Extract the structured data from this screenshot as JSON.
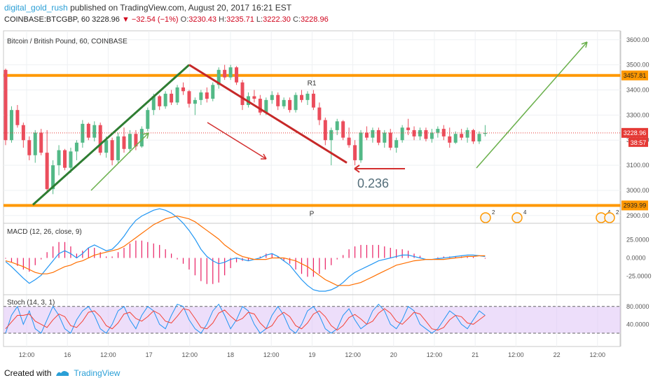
{
  "header": {
    "user": "digital_gold_rush",
    "published": "published on TradingView.com, August 20, 2017 16:21 EST",
    "symbol": "COINBASE:BTCGBP, 60",
    "last": "3228.96",
    "change": "−32.54 (−1%)",
    "o_label": "O:",
    "o": "3230.43",
    "h_label": "H:",
    "h": "3235.71",
    "l_label": "L:",
    "l": "3222.30",
    "c_label": "C:",
    "c": "3228.96"
  },
  "footer": {
    "created_with": "Created with",
    "brand": "TradingView"
  },
  "colors": {
    "up": "#53b987",
    "down": "#eb4d5c",
    "orange": "#ff9800",
    "green_line": "#2e7d32",
    "red_line": "#c62828",
    "stoch_band": "#e1c8f7",
    "macd_line": "#2196f3",
    "signal_line": "#ff6f00"
  },
  "chart_data": {
    "type": "candlestick",
    "title": "Bitcoin / British Pound, 60, COINBASE",
    "price_axis": {
      "ticks": [
        2900,
        3000,
        3100,
        3200,
        3300,
        3400,
        3500,
        3600
      ],
      "labels": [
        "2900.00",
        "3000.00",
        "3100.00",
        "3200.00",
        "3300.00",
        "3400.00",
        "3500.00",
        "3600.00"
      ],
      "range": [
        2880,
        3630
      ]
    },
    "time_axis": {
      "labels": [
        "12:00",
        "16",
        "12:00",
        "17",
        "12:00",
        "18",
        "12:00",
        "19",
        "12:00",
        "20",
        "12:00",
        "21",
        "12:00",
        "22",
        "12:00"
      ]
    },
    "current_price_tag": "3228.96",
    "countdown_tag": "38:57",
    "levels": [
      {
        "name": "R1",
        "value": 3457.81,
        "tag": "3457.81"
      },
      {
        "name": "P",
        "value": 2939.99,
        "tag": "2939.99"
      }
    ],
    "fib_label": "0.236",
    "event_badges": [
      "2",
      "4",
      "4",
      "2"
    ],
    "candles": [
      [
        3480,
        3485,
        3180,
        3200
      ],
      [
        3200,
        3335,
        3190,
        3320
      ],
      [
        3320,
        3340,
        3250,
        3260
      ],
      [
        3260,
        3270,
        3170,
        3200
      ],
      [
        3200,
        3215,
        3120,
        3140
      ],
      [
        3140,
        3240,
        3110,
        3230
      ],
      [
        3230,
        3245,
        3140,
        3150
      ],
      [
        3150,
        3240,
        2990,
        3005
      ],
      [
        3005,
        3120,
        2985,
        3100
      ],
      [
        3100,
        3180,
        3060,
        3160
      ],
      [
        3160,
        3165,
        3080,
        3090
      ],
      [
        3090,
        3170,
        3070,
        3155
      ],
      [
        3155,
        3200,
        3120,
        3190
      ],
      [
        3190,
        3280,
        3170,
        3265
      ],
      [
        3265,
        3270,
        3200,
        3210
      ],
      [
        3210,
        3275,
        3195,
        3260
      ],
      [
        3260,
        3270,
        3140,
        3150
      ],
      [
        3150,
        3215,
        3130,
        3200
      ],
      [
        3200,
        3210,
        3100,
        3120
      ],
      [
        3120,
        3230,
        3110,
        3215
      ],
      [
        3215,
        3250,
        3150,
        3165
      ],
      [
        3165,
        3240,
        3150,
        3225
      ],
      [
        3225,
        3240,
        3160,
        3175
      ],
      [
        3175,
        3255,
        3170,
        3245
      ],
      [
        3245,
        3330,
        3235,
        3320
      ],
      [
        3320,
        3385,
        3300,
        3375
      ],
      [
        3375,
        3380,
        3320,
        3335
      ],
      [
        3335,
        3395,
        3325,
        3385
      ],
      [
        3385,
        3400,
        3340,
        3350
      ],
      [
        3350,
        3420,
        3340,
        3410
      ],
      [
        3410,
        3430,
        3380,
        3395
      ],
      [
        3395,
        3400,
        3330,
        3345
      ],
      [
        3345,
        3370,
        3300,
        3360
      ],
      [
        3360,
        3400,
        3340,
        3390
      ],
      [
        3390,
        3410,
        3350,
        3365
      ],
      [
        3365,
        3430,
        3355,
        3420
      ],
      [
        3420,
        3490,
        3405,
        3480
      ],
      [
        3480,
        3500,
        3440,
        3450
      ],
      [
        3450,
        3500,
        3440,
        3490
      ],
      [
        3490,
        3495,
        3420,
        3430
      ],
      [
        3430,
        3440,
        3320,
        3340
      ],
      [
        3340,
        3390,
        3330,
        3375
      ],
      [
        3375,
        3400,
        3350,
        3365
      ],
      [
        3365,
        3380,
        3300,
        3310
      ],
      [
        3310,
        3370,
        3300,
        3360
      ],
      [
        3360,
        3395,
        3345,
        3380
      ],
      [
        3380,
        3390,
        3320,
        3335
      ],
      [
        3335,
        3370,
        3325,
        3360
      ],
      [
        3360,
        3370,
        3310,
        3320
      ],
      [
        3320,
        3390,
        3310,
        3380
      ],
      [
        3380,
        3400,
        3350,
        3360
      ],
      [
        3360,
        3395,
        3340,
        3385
      ],
      [
        3385,
        3400,
        3320,
        3330
      ],
      [
        3330,
        3350,
        3260,
        3280
      ],
      [
        3280,
        3290,
        3180,
        3200
      ],
      [
        3200,
        3250,
        3100,
        3240
      ],
      [
        3240,
        3285,
        3220,
        3275
      ],
      [
        3275,
        3280,
        3200,
        3210
      ],
      [
        3210,
        3250,
        3170,
        3180
      ],
      [
        3180,
        3200,
        3100,
        3120
      ],
      [
        3120,
        3240,
        3110,
        3230
      ],
      [
        3230,
        3255,
        3200,
        3210
      ],
      [
        3210,
        3250,
        3190,
        3240
      ],
      [
        3240,
        3250,
        3180,
        3190
      ],
      [
        3190,
        3240,
        3170,
        3230
      ],
      [
        3230,
        3245,
        3160,
        3170
      ],
      [
        3170,
        3210,
        3150,
        3200
      ],
      [
        3200,
        3260,
        3190,
        3250
      ],
      [
        3250,
        3285,
        3220,
        3240
      ],
      [
        3240,
        3255,
        3200,
        3215
      ],
      [
        3215,
        3250,
        3200,
        3240
      ],
      [
        3240,
        3250,
        3195,
        3205
      ],
      [
        3205,
        3245,
        3190,
        3230
      ],
      [
        3230,
        3255,
        3210,
        3245
      ],
      [
        3245,
        3260,
        3200,
        3215
      ],
      [
        3215,
        3250,
        3170,
        3190
      ],
      [
        3190,
        3235,
        3185,
        3225
      ],
      [
        3225,
        3245,
        3200,
        3210
      ],
      [
        3210,
        3250,
        3190,
        3240
      ],
      [
        3240,
        3245,
        3185,
        3195
      ],
      [
        3195,
        3235,
        3185,
        3225
      ],
      [
        3225,
        3260,
        3215,
        3228.96
      ]
    ],
    "macd": {
      "title": "MACD (12, 26, close, 9)",
      "ticks": [
        25,
        0,
        -25
      ],
      "labels": [
        "25.0000",
        "0.0000",
        "-25.0000"
      ],
      "range": [
        -45,
        45
      ],
      "macd": [
        -5,
        -12,
        -20,
        -28,
        -35,
        -30,
        -24,
        -14,
        -4,
        6,
        10,
        6,
        0,
        6,
        14,
        18,
        14,
        10,
        12,
        20,
        30,
        42,
        52,
        58,
        62,
        66,
        68,
        66,
        62,
        56,
        48,
        38,
        26,
        12,
        2,
        -4,
        -8,
        -6,
        -2,
        0,
        -2,
        -4,
        -2,
        0,
        4,
        6,
        2,
        -4,
        -10,
        -20,
        -30,
        -38,
        -44,
        -46,
        -46,
        -44,
        -40,
        -34,
        -26,
        -20,
        -16,
        -12,
        -8,
        -4,
        -2,
        0,
        2,
        4,
        4,
        2,
        0,
        -2,
        -2,
        -1,
        0,
        1,
        2,
        3,
        4,
        4,
        3,
        2
      ],
      "signal": [
        -4,
        -6,
        -9,
        -12,
        -16,
        -20,
        -22,
        -22,
        -20,
        -16,
        -12,
        -10,
        -6,
        -4,
        0,
        4,
        6,
        8,
        10,
        12,
        16,
        22,
        28,
        34,
        40,
        46,
        50,
        54,
        56,
        58,
        56,
        54,
        50,
        44,
        38,
        32,
        26,
        18,
        12,
        6,
        2,
        0,
        -2,
        -2,
        -2,
        0,
        0,
        0,
        -2,
        -4,
        -8,
        -12,
        -18,
        -24,
        -30,
        -34,
        -38,
        -38,
        -38,
        -36,
        -34,
        -30,
        -26,
        -22,
        -18,
        -14,
        -10,
        -8,
        -6,
        -4,
        -3,
        -2,
        -2,
        -2,
        -2,
        -1,
        0,
        1,
        2,
        2,
        3,
        3
      ],
      "histogram": [
        -1,
        -6,
        -11,
        -16,
        -19,
        -10,
        -2,
        8,
        16,
        22,
        22,
        16,
        6,
        10,
        14,
        14,
        8,
        2,
        2,
        8,
        14,
        20,
        24,
        24,
        22,
        20,
        18,
        12,
        6,
        -2,
        -8,
        -16,
        -24,
        -32,
        -36,
        -36,
        -34,
        -24,
        -14,
        -6,
        -4,
        -4,
        0,
        2,
        6,
        6,
        2,
        -4,
        -8,
        -16,
        -22,
        -26,
        -26,
        -22,
        -16,
        -10,
        -2,
        4,
        12,
        16,
        18,
        18,
        18,
        18,
        16,
        14,
        12,
        12,
        10,
        6,
        3,
        0,
        0,
        1,
        2,
        2,
        2,
        2,
        2,
        2,
        0,
        -1
      ]
    },
    "stoch": {
      "title": "Stoch (14, 3, 1)",
      "ticks": [
        80,
        40
      ],
      "labels": [
        "80.0000",
        "40.0000"
      ],
      "range": [
        -5,
        100
      ],
      "band": [
        20,
        80
      ],
      "k": [
        20,
        60,
        80,
        40,
        70,
        30,
        20,
        50,
        80,
        60,
        30,
        20,
        50,
        70,
        80,
        60,
        30,
        20,
        40,
        70,
        80,
        50,
        30,
        60,
        80,
        70,
        40,
        30,
        60,
        85,
        80,
        50,
        30,
        20,
        40,
        70,
        85,
        60,
        30,
        50,
        80,
        70,
        40,
        20,
        30,
        60,
        80,
        60,
        30,
        20,
        40,
        70,
        80,
        60,
        30,
        20,
        30,
        60,
        75,
        50,
        30,
        40,
        70,
        85,
        70,
        40,
        30,
        50,
        80,
        70,
        40,
        30,
        20,
        30,
        50,
        70,
        60,
        40,
        30,
        50,
        70,
        60
      ],
      "d": [
        30,
        45,
        60,
        60,
        63,
        47,
        40,
        33,
        50,
        63,
        57,
        37,
        33,
        47,
        67,
        70,
        57,
        37,
        30,
        43,
        63,
        67,
        53,
        47,
        57,
        70,
        63,
        47,
        43,
        58,
        75,
        72,
        53,
        33,
        30,
        43,
        65,
        72,
        58,
        47,
        53,
        67,
        63,
        43,
        30,
        37,
        57,
        67,
        57,
        37,
        30,
        43,
        63,
        70,
        57,
        37,
        27,
        37,
        55,
        62,
        52,
        40,
        47,
        65,
        75,
        65,
        47,
        40,
        53,
        67,
        63,
        47,
        30,
        27,
        33,
        50,
        60,
        57,
        43,
        40,
        50,
        60
      ]
    }
  }
}
